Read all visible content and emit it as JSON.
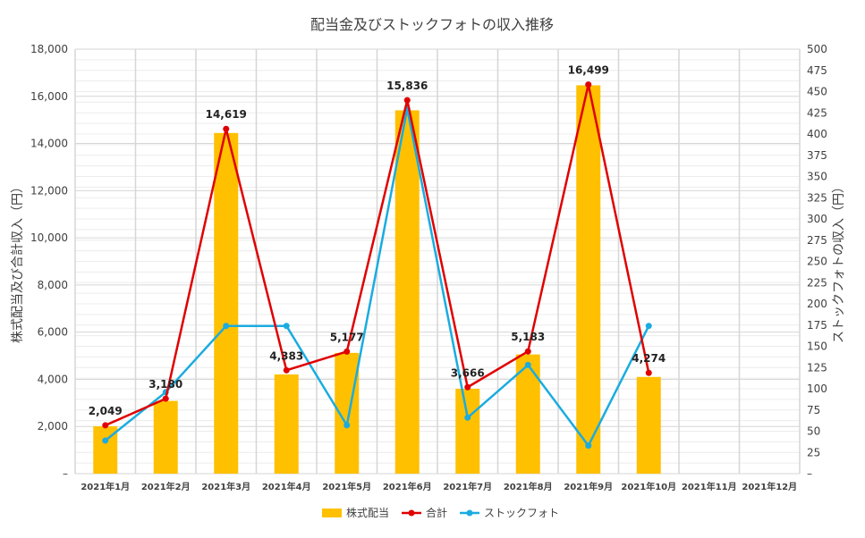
{
  "chart_data": {
    "type": "bar+line",
    "title": "配当金及びストックフォトの収入推移",
    "y_left_label": "株式配当及び合計収入（円）",
    "y_right_label": "ストックフォトの収入（円）",
    "y_left_range": [
      0,
      18000
    ],
    "y_left_step": 2000,
    "y_left_ticks": [
      "–",
      "2,000",
      "4,000",
      "6,000",
      "8,000",
      "10,000",
      "12,000",
      "14,000",
      "16,000",
      "18,000"
    ],
    "y_right_range": [
      0,
      500
    ],
    "y_right_step": 25,
    "y_right_ticks": [
      "–",
      "25",
      "50",
      "75",
      "100",
      "125",
      "150",
      "175",
      "200",
      "225",
      "250",
      "275",
      "300",
      "325",
      "350",
      "375",
      "400",
      "425",
      "450",
      "475",
      "500"
    ],
    "categories": [
      "2021年1月",
      "2021年2月",
      "2021年3月",
      "2021年4月",
      "2021年5月",
      "2021年6月",
      "2021年7月",
      "2021年8月",
      "2021年9月",
      "2021年10月",
      "2021年11月",
      "2021年12月"
    ],
    "series": [
      {
        "name": "株式配当",
        "type": "bar",
        "axis": "left",
        "color": "#FFC000",
        "values": [
          2010,
          3084,
          14445,
          4208,
          5120,
          15406,
          3600,
          5055,
          16466,
          4100,
          null,
          null
        ]
      },
      {
        "name": "合計",
        "type": "line",
        "axis": "left",
        "color": "#E00000",
        "values": [
          2049,
          3180,
          14619,
          4383,
          5177,
          15836,
          3666,
          5183,
          16499,
          4274,
          null,
          null
        ],
        "labels": [
          "2,049",
          "3,180",
          "14,619",
          "4,383",
          "5,177",
          "15,836",
          "3,666",
          "5,183",
          "16,499",
          "4,274",
          "",
          ""
        ]
      },
      {
        "name": "ストックフォト",
        "type": "line",
        "axis": "right",
        "color": "#1AACE0",
        "values": [
          39,
          96,
          174,
          174,
          57,
          430,
          66,
          128,
          33,
          174,
          null,
          null
        ]
      }
    ],
    "legend_position": "bottom",
    "grid": true
  }
}
